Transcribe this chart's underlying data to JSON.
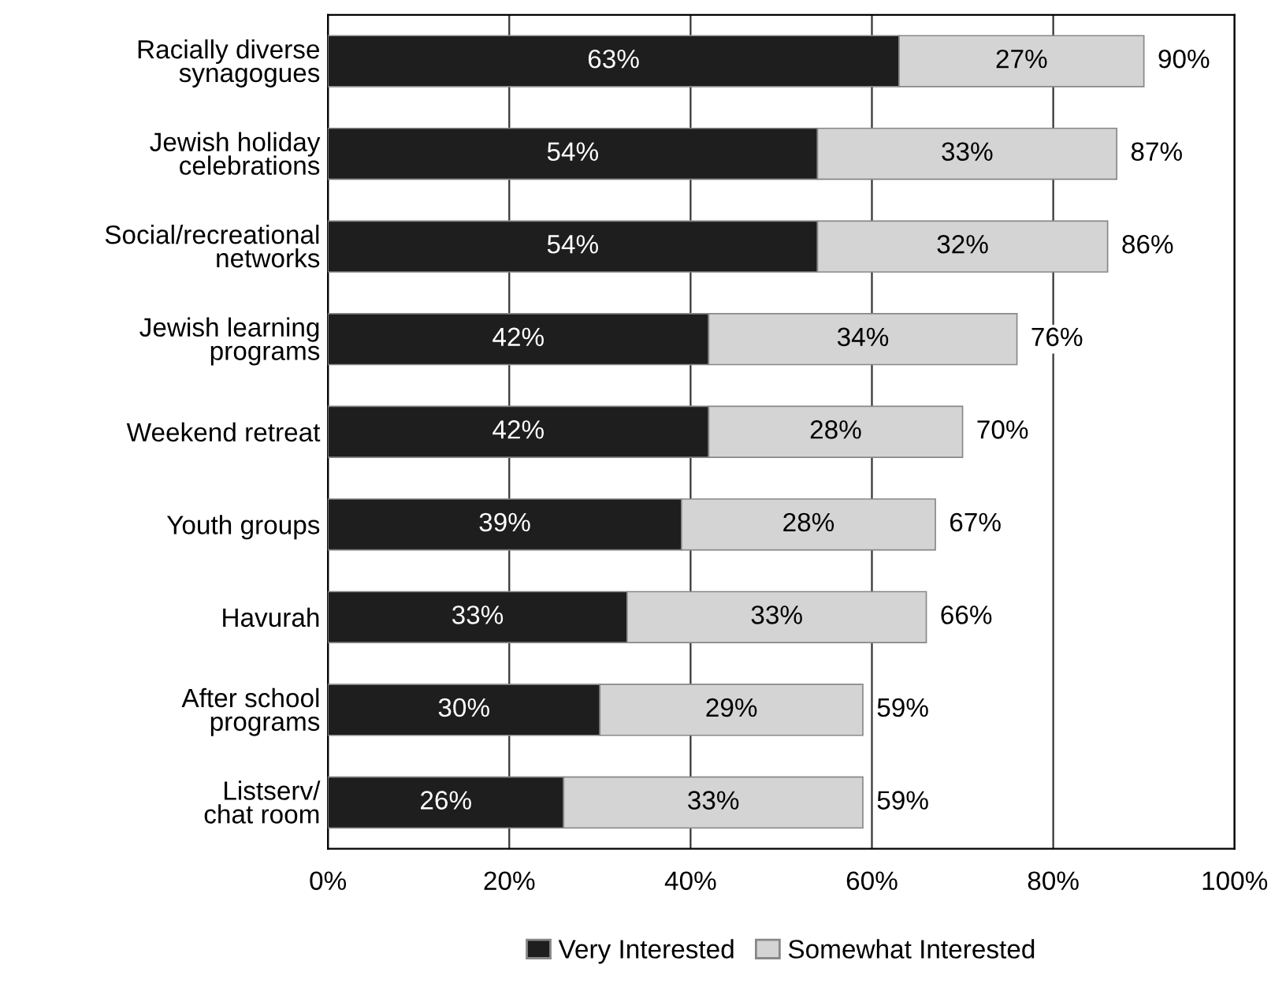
{
  "chart_data": {
    "type": "bar",
    "orientation": "horizontal",
    "stacked": true,
    "categories": [
      "Racially diverse\nsynagogues",
      "Jewish holiday\ncelebrations",
      "Social/recreational\nnetworks",
      "Jewish learning\nprograms",
      "Weekend retreat",
      "Youth groups",
      "Havurah",
      "After school\nprograms",
      "Listserv/\nchat room"
    ],
    "series": [
      {
        "name": "Very Interested",
        "color": "#1e1e1e",
        "values": [
          63,
          54,
          54,
          42,
          42,
          39,
          33,
          30,
          26
        ],
        "value_labels": [
          "63%",
          "54%",
          "54%",
          "42%",
          "42%",
          "39%",
          "33%",
          "30%",
          "26%"
        ]
      },
      {
        "name": "Somewhat Interested",
        "color": "#d4d4d4",
        "values": [
          27,
          33,
          32,
          34,
          28,
          28,
          33,
          29,
          33
        ],
        "value_labels": [
          "27%",
          "33%",
          "32%",
          "34%",
          "28%",
          "28%",
          "33%",
          "29%",
          "33%"
        ]
      }
    ],
    "totals": [
      "90%",
      "87%",
      "86%",
      "76%",
      "70%",
      "67%",
      "66%",
      "59%",
      "59%"
    ],
    "xlim": [
      0,
      100
    ],
    "xticks": [
      {
        "value": 0,
        "label": "0%"
      },
      {
        "value": 20,
        "label": "20%"
      },
      {
        "value": 40,
        "label": "40%"
      },
      {
        "value": 60,
        "label": "60%"
      },
      {
        "value": 80,
        "label": "80%"
      },
      {
        "value": 100,
        "label": "100%"
      }
    ],
    "grid": "x",
    "legend": "bottom"
  }
}
